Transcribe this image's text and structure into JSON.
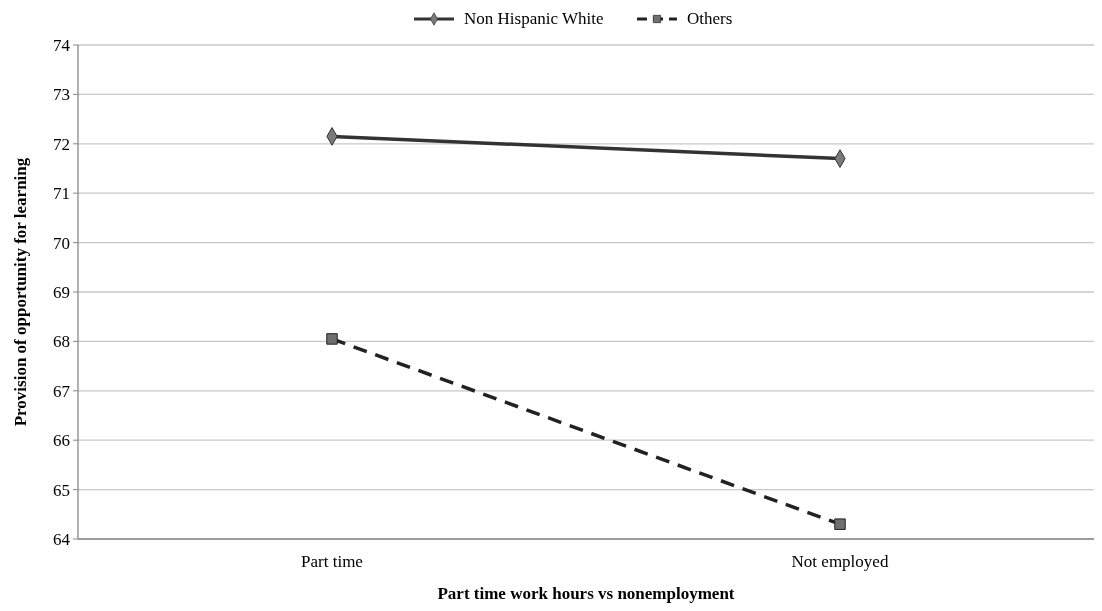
{
  "chart_data": {
    "type": "line",
    "xlabel": "Part time work hours vs nonemployment",
    "ylabel": "Provision of opportunity for learning",
    "categories": [
      "Part time",
      "Not employed"
    ],
    "series": [
      {
        "name": "Non Hispanic White",
        "color": "#333333",
        "marker": "diamond",
        "line_style": "solid",
        "values": [
          72.15,
          71.7
        ]
      },
      {
        "name": "Others",
        "color": "#222222",
        "marker": "square",
        "line_style": "dashed",
        "values": [
          68.05,
          64.3
        ]
      }
    ],
    "ylim": [
      64,
      74
    ],
    "yticks": [
      64,
      65,
      66,
      67,
      68,
      69,
      70,
      71,
      72,
      73,
      74
    ],
    "grid": "y",
    "legend": "top"
  }
}
